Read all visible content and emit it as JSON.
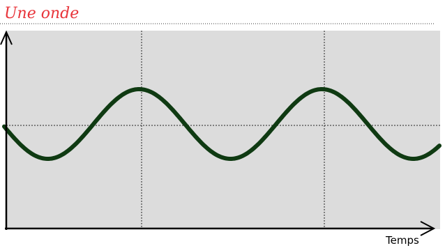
{
  "header": {
    "title": "Une onde"
  },
  "axis": {
    "x_label": "Temps"
  }
}
